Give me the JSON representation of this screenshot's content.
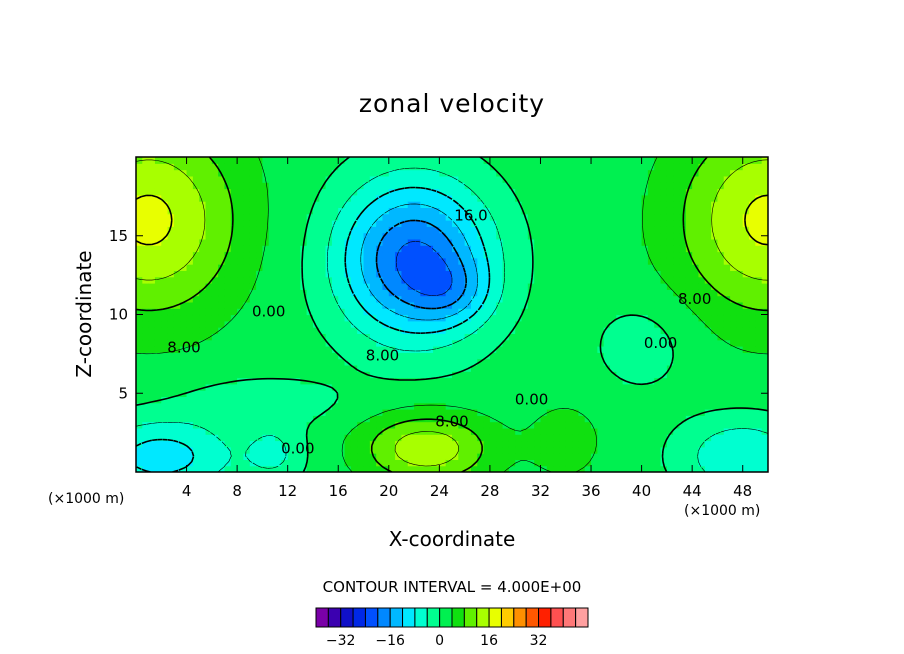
{
  "chart_data": {
    "type": "heatmap",
    "subtype": "filled-contour",
    "title": "zonal velocity",
    "xlabel": "X-coordinate",
    "ylabel": "Z-coordinate",
    "x_unit_label": "(×1000 m)",
    "y_unit_label": "(×1000 m)",
    "xlim": [
      0,
      50
    ],
    "ylim": [
      0,
      20
    ],
    "x_ticks": [
      4,
      8,
      12,
      16,
      20,
      24,
      28,
      32,
      36,
      40,
      44,
      48
    ],
    "x_tick_labels": [
      "4",
      "8",
      "12",
      "16",
      "20",
      "24",
      "28",
      "32",
      "36",
      "40",
      "44",
      "48"
    ],
    "y_ticks": [
      5,
      10,
      15
    ],
    "y_tick_labels": [
      "5",
      "10",
      "15"
    ],
    "contour_interval_text": "CONTOUR INTERVAL = 4.000E+00",
    "contour_interval": 4.0,
    "contour_labels": [
      {
        "text": "16.0",
        "x": 26.5,
        "z": 16.3
      },
      {
        "text": "8.00",
        "x": 3.8,
        "z": 7.9
      },
      {
        "text": "0.00",
        "x": 10.5,
        "z": 10.2
      },
      {
        "text": "8.00",
        "x": 19.5,
        "z": 7.4
      },
      {
        "text": "8.00",
        "x": 25.0,
        "z": 3.2
      },
      {
        "text": "0.00",
        "x": 31.3,
        "z": 4.6
      },
      {
        "text": "0.00",
        "x": 41.5,
        "z": 8.2
      },
      {
        "text": "8.00",
        "x": 44.2,
        "z": 11.0
      },
      {
        "text": "0.00",
        "x": 12.8,
        "z": 1.5
      }
    ],
    "field_features": [
      {
        "kind": "max",
        "x": 1.5,
        "z": 16.0,
        "value": 16
      },
      {
        "kind": "max",
        "x": 49.5,
        "z": 16.2,
        "value": 16
      },
      {
        "kind": "max",
        "x": 23.5,
        "z": 1.5,
        "value": 14
      },
      {
        "kind": "min",
        "x": 22.0,
        "z": 14.5,
        "value": -20
      },
      {
        "kind": "min",
        "x": 2.0,
        "z": 1.0,
        "value": -10
      },
      {
        "kind": "min",
        "x": 48.0,
        "z": 1.0,
        "value": -8
      }
    ],
    "colorbar": {
      "colors": [
        "#7a00a8",
        "#3b00b0",
        "#1010c8",
        "#0028e6",
        "#0050ff",
        "#0088ff",
        "#00b8ff",
        "#00e8ff",
        "#00ffd0",
        "#00ff90",
        "#00f050",
        "#10e010",
        "#60f000",
        "#a8ff00",
        "#e8ff00",
        "#ffcc00",
        "#ff9000",
        "#ff5800",
        "#ff2000",
        "#ff5050",
        "#ff7878",
        "#ffa0a0"
      ],
      "tick_values": [
        -32,
        -16,
        0,
        16,
        32
      ],
      "tick_labels": [
        "−32",
        "−16",
        "0",
        "16",
        "32"
      ]
    }
  }
}
